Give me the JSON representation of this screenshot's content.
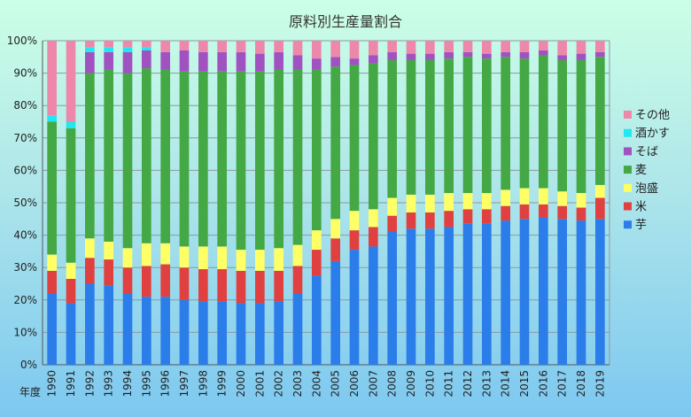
{
  "chart_data": {
    "type": "bar",
    "stacked": true,
    "title": "原料別生産量割合",
    "xlabel": "年度",
    "ylabel": "",
    "ylim": [
      0,
      100
    ],
    "yticks": [
      "0%",
      "10%",
      "20%",
      "30%",
      "40%",
      "50%",
      "60%",
      "70%",
      "80%",
      "90%",
      "100%"
    ],
    "grid": true,
    "legend_position": "right",
    "categories": [
      "1990",
      "1991",
      "1992",
      "1993",
      "1994",
      "1995",
      "1996",
      "1997",
      "1998",
      "1999",
      "2000",
      "2001",
      "2002",
      "2003",
      "2004",
      "2005",
      "2006",
      "2007",
      "2008",
      "2009",
      "2010",
      "2011",
      "2012",
      "2013",
      "2014",
      "2015",
      "2016",
      "2017",
      "2018",
      "2019"
    ],
    "series": [
      {
        "name": "芋",
        "color": "#2b7de9",
        "values": [
          22,
          19,
          25,
          24.5,
          22,
          21,
          21,
          20,
          19.5,
          19.5,
          19,
          19,
          19.5,
          22,
          27.5,
          32,
          35.5,
          36.5,
          41,
          42,
          42,
          42.5,
          43.5,
          43.5,
          44.5,
          45,
          45.5,
          45,
          44.5,
          45
        ]
      },
      {
        "name": "米",
        "color": "#e04040",
        "values": [
          7,
          7.5,
          8,
          8,
          8,
          9.5,
          10,
          10,
          10,
          10,
          10,
          10,
          9.5,
          8.5,
          8,
          7,
          6,
          6,
          5,
          5,
          5,
          5,
          4.5,
          4.5,
          4.5,
          4.5,
          4,
          4,
          4,
          6.5
        ]
      },
      {
        "name": "泡盛",
        "color": "#ffff66",
        "values": [
          5,
          5,
          6,
          5.5,
          6,
          7,
          6.5,
          6.5,
          7,
          7,
          6.5,
          6.5,
          7,
          6.5,
          6,
          6,
          6,
          5.5,
          5.5,
          5.5,
          5.5,
          5.5,
          5,
          5,
          5,
          5,
          5,
          4.5,
          4.5,
          4
        ]
      },
      {
        "name": "麦",
        "color": "#44a844",
        "values": [
          41,
          41.5,
          51,
          53,
          54,
          54,
          53.5,
          54,
          54,
          54,
          55,
          55,
          55,
          54,
          49.5,
          47,
          45,
          45,
          42.5,
          41.5,
          41.5,
          41.5,
          42,
          41.5,
          41,
          40,
          41,
          40.5,
          41,
          39.5
        ]
      },
      {
        "name": "そば",
        "color": "#a052c0",
        "values": [
          0,
          0,
          6.5,
          5.5,
          6.5,
          5.5,
          5.5,
          6.5,
          6,
          6,
          6,
          5.5,
          5.5,
          4.5,
          3.5,
          3,
          2,
          2.5,
          2.5,
          2,
          2,
          2,
          1.5,
          1.5,
          1.5,
          2,
          1.5,
          1.5,
          2,
          1.5
        ]
      },
      {
        "name": "酒かす",
        "color": "#22e6f0",
        "values": [
          2,
          2,
          1.5,
          1.5,
          1.5,
          1,
          0,
          0,
          0,
          0,
          0,
          0,
          0,
          0,
          0,
          0,
          0,
          0,
          0,
          0,
          0,
          0,
          0,
          0,
          0,
          0,
          0,
          0,
          0,
          0
        ]
      },
      {
        "name": "その他",
        "color": "#ee88aa",
        "values": [
          23,
          25,
          2,
          2,
          2,
          2,
          3.5,
          3,
          3.5,
          3.5,
          3.5,
          4,
          3.5,
          4.5,
          5.5,
          5,
          5.5,
          4.5,
          3.5,
          4,
          4,
          3.5,
          3.5,
          4,
          3.5,
          3.5,
          3,
          4.5,
          4,
          3.5
        ]
      }
    ]
  }
}
